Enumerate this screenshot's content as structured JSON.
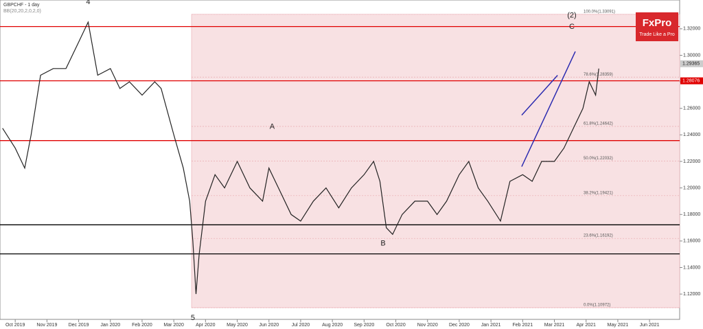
{
  "chart_data": {
    "type": "line",
    "title": "GBPCHF - 1 day",
    "indicator": "BB(20,20,2,0,2,0)",
    "logo": {
      "name": "FxPro",
      "tagline": "Trade Like a Pro"
    },
    "series": [
      {
        "name": "GBPCHF",
        "color": "#222222",
        "x": [
          -0.4,
          0,
          0.3,
          0.5,
          0.8,
          1.2,
          1.6,
          2.0,
          2.3,
          2.6,
          3.0,
          3.3,
          3.6,
          4.0,
          4.4,
          4.6,
          5.0,
          5.3,
          5.5,
          5.6,
          5.7,
          5.8,
          6.0,
          6.3,
          6.6,
          7.0,
          7.4,
          7.8,
          8.0,
          8.3,
          8.7,
          9.0,
          9.4,
          9.8,
          10.2,
          10.6,
          11.0,
          11.3,
          11.5,
          11.7,
          11.9,
          12.2,
          12.6,
          13.0,
          13.3,
          13.6,
          14.0,
          14.3,
          14.6,
          14.9,
          15.3,
          15.6,
          16.0,
          16.3,
          16.6,
          17.0,
          17.3,
          17.6,
          17.9,
          18.1,
          18.3,
          18.4
        ],
        "values": [
          1.245,
          1.23,
          1.215,
          1.24,
          1.285,
          1.29,
          1.29,
          1.31,
          1.325,
          1.285,
          1.29,
          1.275,
          1.28,
          1.27,
          1.28,
          1.275,
          1.24,
          1.215,
          1.19,
          1.16,
          1.12,
          1.15,
          1.19,
          1.21,
          1.2,
          1.22,
          1.2,
          1.19,
          1.215,
          1.2,
          1.18,
          1.175,
          1.19,
          1.2,
          1.185,
          1.2,
          1.21,
          1.22,
          1.205,
          1.17,
          1.165,
          1.18,
          1.19,
          1.19,
          1.18,
          1.19,
          1.21,
          1.22,
          1.2,
          1.19,
          1.175,
          1.205,
          1.21,
          1.205,
          1.22,
          1.22,
          1.23,
          1.245,
          1.26,
          1.28,
          1.27,
          1.29
        ]
      }
    ],
    "xlim": [
      -0.48,
      20.95
    ],
    "xticks": [
      {
        "value": 0,
        "label": "Oct 2019"
      },
      {
        "value": 1,
        "label": "Nov 2019"
      },
      {
        "value": 2,
        "label": "Dec 2019"
      },
      {
        "value": 3,
        "label": "Jan 2020"
      },
      {
        "value": 4,
        "label": "Feb 2020"
      },
      {
        "value": 5,
        "label": "Mar 2020"
      },
      {
        "value": 6,
        "label": "Apr 2020"
      },
      {
        "value": 7,
        "label": "May 2020"
      },
      {
        "value": 8,
        "label": "Jun 2020"
      },
      {
        "value": 9,
        "label": "Jul 2020"
      },
      {
        "value": 10,
        "label": "Aug 2020"
      },
      {
        "value": 11,
        "label": "Sep 2020"
      },
      {
        "value": 12,
        "label": "Oct 2020"
      },
      {
        "value": 13,
        "label": "Nov 2020"
      },
      {
        "value": 14,
        "label": "Dec 2020"
      },
      {
        "value": 15,
        "label": "Jan 2021"
      },
      {
        "value": 16,
        "label": "Feb 2021"
      },
      {
        "value": 17,
        "label": "Mar 2021"
      },
      {
        "value": 18,
        "label": "Apr 2021"
      },
      {
        "value": 19,
        "label": "May 2021"
      },
      {
        "value": 20,
        "label": "Jun 2021"
      }
    ],
    "ylim": [
      1.1009,
      1.3417
    ],
    "yticks": [
      {
        "value": 1.12,
        "label": "1.12000"
      },
      {
        "value": 1.14,
        "label": "1.14000"
      },
      {
        "value": 1.16,
        "label": "1.16000"
      },
      {
        "value": 1.18,
        "label": "1.18000"
      },
      {
        "value": 1.2,
        "label": "1.20000"
      },
      {
        "value": 1.22,
        "label": "1.22000"
      },
      {
        "value": 1.24,
        "label": "1.24000"
      },
      {
        "value": 1.26,
        "label": "1.26000"
      },
      {
        "value": 1.28,
        "label": "1.28000"
      },
      {
        "value": 1.3,
        "label": "1.30000"
      },
      {
        "value": 1.32,
        "label": "1.32000"
      }
    ],
    "price_labels": [
      {
        "value": 1.29365,
        "label": "1.29365",
        "color": "#cccccc"
      },
      {
        "value": 1.28076,
        "label": "1.28076",
        "color": "#e00000"
      }
    ],
    "fib_start": 5.56,
    "fib_levels": [
      {
        "value": 1.33091,
        "label": "100.0%(1.33091)"
      },
      {
        "value": 1.28359,
        "label": "78.6%(1.28359)"
      },
      {
        "value": 1.24642,
        "label": "61.8%(1.24642)"
      },
      {
        "value": 1.22032,
        "label": "50.0%(1.22032)"
      },
      {
        "value": 1.19421,
        "label": "38.2%(1.19421)"
      },
      {
        "value": 1.16192,
        "label": "23.6%(1.16192)"
      },
      {
        "value": 1.10972,
        "label": "0.0%(1.10972)"
      }
    ],
    "horizontal_levels": [
      {
        "value": 1.3217,
        "color": "#e00000"
      },
      {
        "value": 1.2808,
        "color": "#e00000"
      },
      {
        "value": 1.2357,
        "color": "#e00000"
      },
      {
        "value": 1.1722,
        "color": "#000000"
      },
      {
        "value": 1.1503,
        "color": "#000000"
      }
    ],
    "channel": [
      {
        "x": [
          15.97,
          17.1
        ],
        "values": [
          1.2549,
          1.2849
        ]
      },
      {
        "x": [
          15.97,
          17.66
        ],
        "values": [
          1.2161,
          1.3029
        ]
      }
    ],
    "annotations": [
      {
        "text": "4",
        "x": 2.3,
        "y": 1.34
      },
      {
        "text": "5",
        "x": 5.6,
        "y": 1.102
      },
      {
        "text": "A",
        "x": 8.1,
        "y": 1.246
      },
      {
        "text": "B",
        "x": 11.6,
        "y": 1.158
      },
      {
        "text": "C",
        "x": 17.55,
        "y": 1.3215
      },
      {
        "text": "(2)",
        "x": 17.55,
        "y": 1.33
      }
    ]
  }
}
